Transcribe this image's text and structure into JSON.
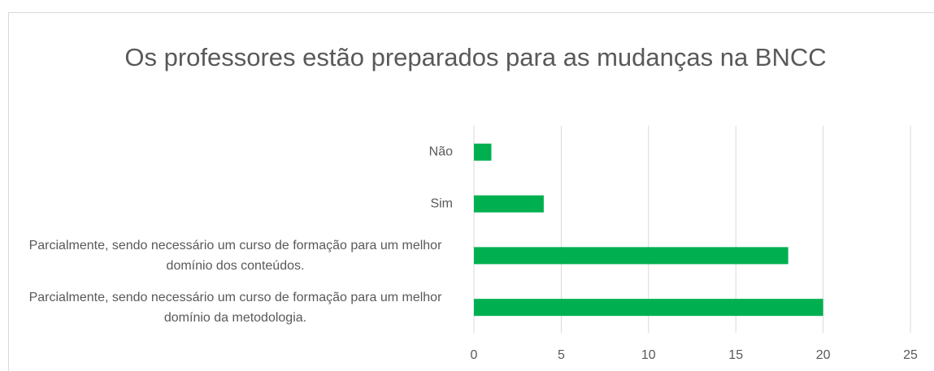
{
  "chart_data": {
    "type": "bar",
    "orientation": "horizontal",
    "title": "Os professores estão preparados para as mudanças na BNCC",
    "categories": [
      "Não",
      "Sim",
      "Parcialmente, sendo necessário um curso de formação para um melhor domínio dos conteúdos.",
      "Parcialmente, sendo necessário um curso de formação para um melhor domínio da metodologia."
    ],
    "values": [
      1,
      4,
      18,
      20
    ],
    "color": "#00b050",
    "xlim": [
      0,
      25
    ],
    "xticks": [
      0,
      5,
      10,
      15,
      20,
      25
    ],
    "grid": true
  }
}
